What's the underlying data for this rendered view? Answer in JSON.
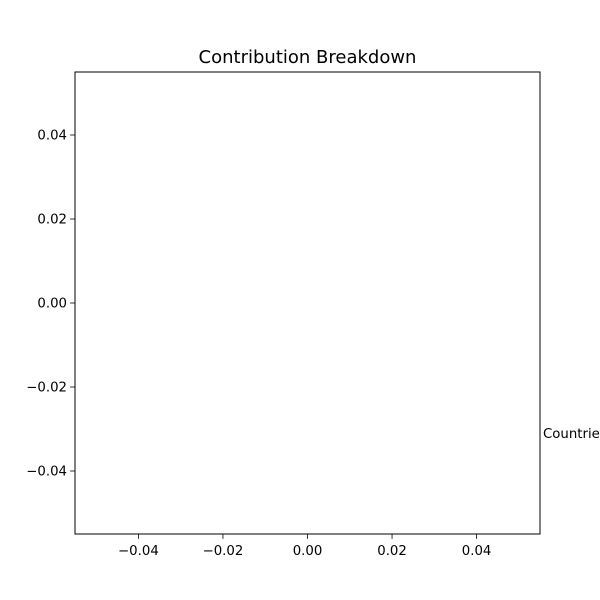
{
  "chart_data": {
    "type": "scatter",
    "title": "Contribution Breakdown",
    "xlabel": "",
    "ylabel": "",
    "xlim": [
      -0.055,
      0.055
    ],
    "ylim": [
      -0.055,
      0.055
    ],
    "x_ticks": [
      -0.04,
      -0.02,
      0.0,
      0.02,
      0.04
    ],
    "x_tick_labels": [
      "−0.04",
      "−0.02",
      "0.00",
      "0.02",
      "0.04"
    ],
    "y_ticks": [
      -0.04,
      -0.02,
      0.0,
      0.02,
      0.04
    ],
    "y_tick_labels": [
      "−0.04",
      "−0.02",
      "0.00",
      "0.02",
      "0.04"
    ],
    "grid": false,
    "series": [],
    "annotations": [
      {
        "text": "Countries",
        "y": -0.031
      }
    ]
  }
}
